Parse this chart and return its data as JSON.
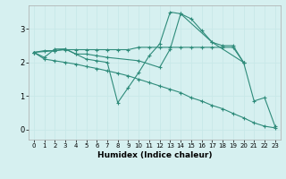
{
  "xlabel": "Humidex (Indice chaleur)",
  "bg_color": "#d6f0f0",
  "line_color": "#2e8b7a",
  "grid_color": "#c8e8e8",
  "xlim": [
    -0.5,
    23.5
  ],
  "ylim": [
    -0.3,
    3.7
  ],
  "yticks": [
    0,
    1,
    2,
    3
  ],
  "xticks": [
    0,
    1,
    2,
    3,
    4,
    5,
    6,
    7,
    8,
    9,
    10,
    11,
    12,
    13,
    14,
    15,
    16,
    17,
    18,
    19,
    20,
    21,
    22,
    23
  ],
  "series": [
    {
      "x": [
        0,
        1,
        2,
        3,
        4,
        5,
        6,
        7,
        8,
        9,
        10,
        11,
        12,
        13,
        14,
        15,
        16,
        17,
        18,
        19,
        20,
        21,
        22,
        23
      ],
      "y": [
        2.3,
        2.15,
        2.4,
        2.4,
        2.25,
        2.1,
        2.05,
        2.0,
        0.8,
        1.25,
        1.7,
        2.2,
        2.55,
        3.5,
        3.45,
        3.3,
        2.95,
        2.6,
        2.5,
        2.5,
        2.0,
        0.85,
        0.95,
        0.1
      ]
    },
    {
      "x": [
        0,
        1,
        2,
        3,
        4,
        5,
        6,
        7,
        8,
        9,
        10,
        11,
        12,
        13,
        14,
        15,
        16,
        17,
        18,
        19,
        20
      ],
      "y": [
        2.3,
        2.35,
        2.35,
        2.38,
        2.38,
        2.38,
        2.38,
        2.38,
        2.38,
        2.38,
        2.45,
        2.45,
        2.45,
        2.45,
        2.45,
        2.45,
        2.45,
        2.45,
        2.45,
        2.45,
        2.0
      ]
    },
    {
      "x": [
        0,
        2,
        3,
        4,
        5,
        6,
        7,
        10,
        12,
        13,
        14,
        17,
        20
      ],
      "y": [
        2.3,
        2.35,
        2.4,
        2.25,
        2.25,
        2.2,
        2.15,
        2.05,
        1.85,
        2.4,
        3.45,
        2.6,
        2.0
      ]
    },
    {
      "x": [
        0,
        1,
        2,
        3,
        4,
        5,
        6,
        7,
        8,
        9,
        10,
        11,
        12,
        13,
        14,
        15,
        16,
        17,
        18,
        19,
        20,
        21,
        22,
        23
      ],
      "y": [
        2.3,
        2.1,
        2.05,
        2.0,
        1.95,
        1.88,
        1.82,
        1.75,
        1.68,
        1.6,
        1.5,
        1.4,
        1.3,
        1.2,
        1.1,
        0.95,
        0.85,
        0.72,
        0.62,
        0.48,
        0.35,
        0.2,
        0.1,
        0.05
      ]
    }
  ]
}
